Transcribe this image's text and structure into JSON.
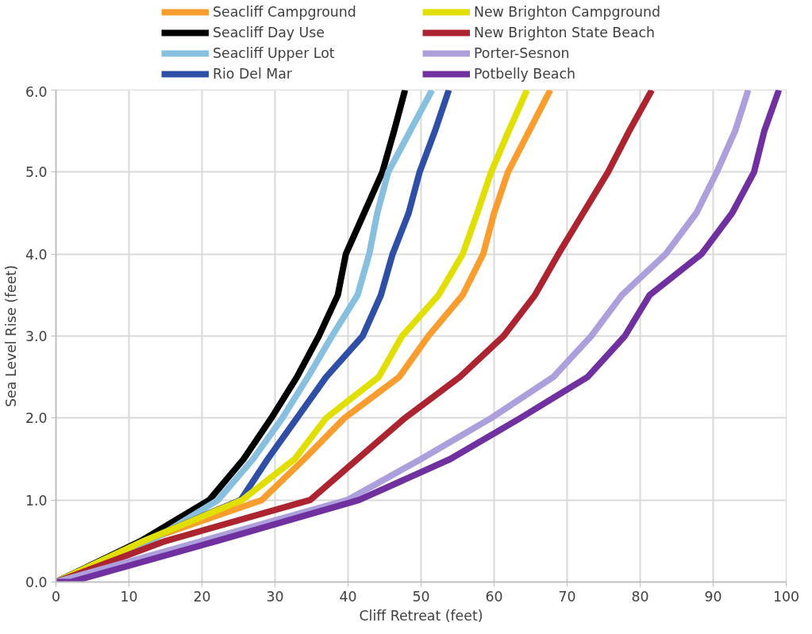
{
  "chart_data": {
    "type": "line",
    "xlabel": "Cliff Retreat (feet)",
    "ylabel": "Sea Level Rise (feet)",
    "xlim": [
      0,
      100
    ],
    "ylim": [
      0,
      6
    ],
    "xticks": [
      0,
      10,
      20,
      30,
      40,
      50,
      60,
      70,
      80,
      90,
      100
    ],
    "yticks": [
      {
        "value": 0,
        "label": "0.0"
      },
      {
        "value": 1,
        "label": "1.0"
      },
      {
        "value": 2,
        "label": "2.0"
      },
      {
        "value": 3,
        "label": "3.0"
      },
      {
        "value": 4,
        "label": "4.0"
      },
      {
        "value": 5,
        "label": "5.0"
      },
      {
        "value": 6,
        "label": "6.0"
      }
    ],
    "grid": true,
    "legend": "top",
    "marker": "none",
    "line_style": "solid",
    "series": [
      {
        "name": "Seacliff Campground",
        "color": "#f99d2f",
        "x": [
          0,
          12,
          28.2,
          34,
          39.5,
          47,
          51,
          55.7,
          58.5,
          60,
          61.9,
          64.8,
          67.7
        ],
        "values": [
          0,
          0.5,
          1,
          1.5,
          2,
          2.5,
          3,
          3.5,
          4,
          4.5,
          5,
          5.5,
          6
        ]
      },
      {
        "name": "Seacliff Day Use",
        "color": "#000000",
        "x": [
          0,
          11.6,
          21,
          25.7,
          29.5,
          33,
          36,
          38.6,
          39.7,
          42.2,
          44.7,
          46.3,
          47.8
        ],
        "values": [
          0,
          0.5,
          1,
          1.5,
          2,
          2.5,
          3,
          3.5,
          4,
          4.5,
          5,
          5.5,
          6
        ]
      },
      {
        "name": "Seacliff Upper Lot",
        "color": "#87bfde",
        "x": [
          0,
          13,
          22.2,
          27,
          31,
          34.5,
          37.8,
          41.3,
          42.9,
          44,
          45.5,
          48.5,
          51.5
        ],
        "values": [
          0,
          0.5,
          1,
          1.5,
          2,
          2.5,
          3,
          3.5,
          4,
          4.5,
          5,
          5.5,
          6
        ]
      },
      {
        "name": "Rio Del Mar",
        "color": "#2e4fa5",
        "x": [
          0,
          12,
          25.3,
          29,
          33,
          37,
          42,
          44.5,
          46.1,
          48.3,
          49.8,
          51.9,
          53.8
        ],
        "values": [
          0,
          0.5,
          1,
          1.5,
          2,
          2.5,
          3,
          3.5,
          4,
          4.5,
          5,
          5.5,
          6
        ]
      },
      {
        "name": "New Brighton Campground",
        "color": "#e1df00",
        "x": [
          0,
          12,
          25.5,
          32.7,
          37,
          44.2,
          47.4,
          52.4,
          55.7,
          57.7,
          59.6,
          62,
          64.5
        ],
        "values": [
          0,
          0.5,
          1,
          1.5,
          2,
          2.5,
          3,
          3.5,
          4,
          4.5,
          5,
          5.5,
          6
        ]
      },
      {
        "name": "New Brighton State Beach",
        "color": "#ac2430",
        "x": [
          0,
          15,
          34.8,
          41.3,
          47.8,
          55.3,
          61.3,
          65.6,
          68.8,
          72.2,
          75.6,
          78.5,
          81.6
        ],
        "values": [
          0,
          0.5,
          1,
          1.5,
          2,
          2.5,
          3,
          3.5,
          4,
          4.5,
          5,
          5.5,
          6
        ]
      },
      {
        "name": "Porter-Sesnon",
        "color": "#ad9fdb",
        "x": [
          0,
          20,
          39.9,
          50,
          59.6,
          68.1,
          73.3,
          77.5,
          83.5,
          87.7,
          90.5,
          93,
          94.8
        ],
        "values": [
          0,
          0.5,
          1,
          1.5,
          2,
          2.5,
          3,
          3.5,
          4,
          4.5,
          5,
          5.5,
          6
        ]
      },
      {
        "name": "Potbelly Beach",
        "color": "#7030a0",
        "x": [
          0,
          2,
          22,
          41.5,
          54,
          63.6,
          72.8,
          77.9,
          81.3,
          88.4,
          92.6,
          95.6,
          97,
          99
        ],
        "values": [
          0,
          0,
          0.5,
          1,
          1.5,
          2,
          2.5,
          3,
          3.5,
          4,
          4.5,
          5,
          5.5,
          6
        ]
      }
    ]
  }
}
